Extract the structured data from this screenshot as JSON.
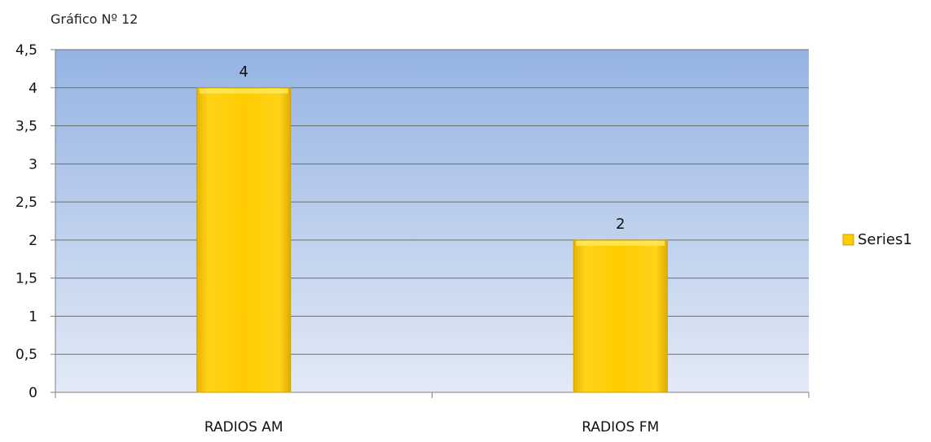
{
  "caption": "Gráfico Nº 12",
  "chart_data": {
    "type": "bar",
    "title": "",
    "xlabel": "",
    "ylabel": "",
    "categories": [
      "RADIOS AM",
      "RADIOS FM"
    ],
    "series": [
      {
        "name": "Series1",
        "values": [
          4,
          2
        ]
      }
    ],
    "ylim": [
      0,
      4.5
    ],
    "yticks": [
      "0",
      "0,5",
      "1",
      "1,5",
      "2",
      "2,5",
      "3",
      "3,5",
      "4",
      "4,5"
    ],
    "data_labels": [
      "4",
      "2"
    ],
    "grid": true,
    "legend_position": "right",
    "colors": {
      "bar": "#FFCC00",
      "bar_edge": "#C9A000",
      "plot_bg_top": "#95B3E3",
      "plot_bg_bottom": "#E3EAF6",
      "gridline": "#6E6E6E"
    }
  }
}
